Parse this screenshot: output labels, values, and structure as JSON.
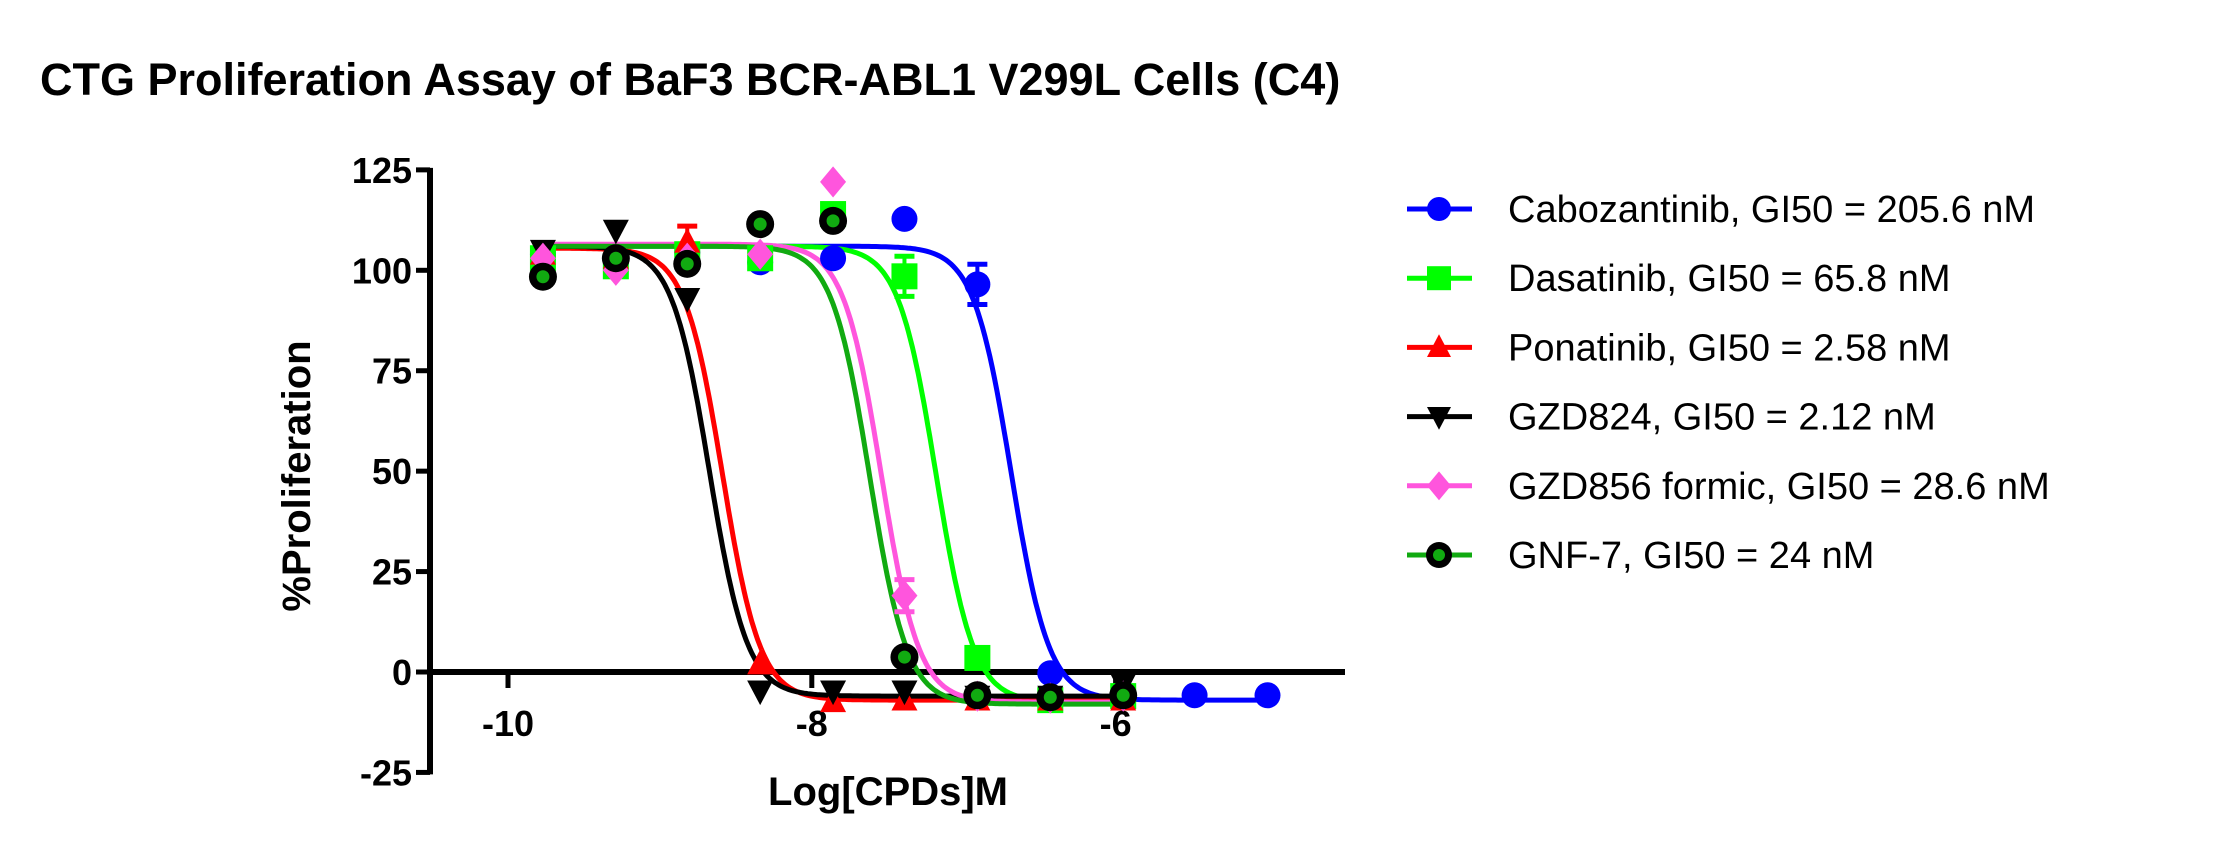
{
  "chart_data": {
    "type": "scatter",
    "title": "CTG Proliferation Assay of BaF3 BCR-ABL1 V299L Cells (C4)",
    "xlabel": "Log[CPDs]M",
    "ylabel": "%Proliferation",
    "xlim": [
      -10.5,
      -4.5
    ],
    "ylim": [
      -25,
      125
    ],
    "xticks": [
      "-10",
      "-8",
      "-6"
    ],
    "xtick_values": [
      -10,
      -8,
      -6
    ],
    "yticks": [
      "125",
      "100",
      "75",
      "50",
      "25",
      "0",
      "-25"
    ],
    "ytick_values": [
      125,
      100,
      75,
      50,
      25,
      0,
      -25
    ],
    "grid": false,
    "legend_position": "right",
    "fit": "four-parameter logistic dose-response",
    "series": [
      {
        "name": "Cabozantinib, GI50 = 205.6 nM",
        "color": "#0000FF",
        "marker": "circle",
        "log_gi50": -6.687,
        "top": 106,
        "bottom": -7,
        "hill": 3.5,
        "x": [
          -9.77,
          -9.29,
          -8.82,
          -8.34,
          -7.86,
          -7.39,
          -6.91,
          -6.43,
          -5.95,
          -5.48,
          -5.0
        ],
        "y": [
          104,
          103,
          104.5,
          102,
          103,
          112.8,
          96.5,
          -0.3,
          -5.8,
          -5.8,
          -5.8
        ],
        "err": [
          0,
          0,
          0,
          0,
          0,
          0,
          5,
          0,
          0,
          0,
          0
        ]
      },
      {
        "name": "Dasatinib, GI50 = 65.8 nM",
        "color": "#00FF00",
        "marker": "square",
        "log_gi50": -7.182,
        "top": 106,
        "bottom": -7.5,
        "hill": 3.5,
        "x": [
          -9.77,
          -9.29,
          -8.82,
          -8.34,
          -7.86,
          -7.39,
          -6.91,
          -6.43,
          -5.95
        ],
        "y": [
          103,
          101,
          104,
          103,
          114,
          98.5,
          3.5,
          -7,
          -6
        ],
        "err": [
          0,
          0,
          0,
          0,
          0,
          5,
          0,
          0,
          0
        ]
      },
      {
        "name": "Ponatinib, GI50 = 2.58 nM",
        "color": "#FF0000",
        "marker": "triangle-up",
        "log_gi50": -8.588,
        "top": 105.5,
        "bottom": -7,
        "hill": 3.5,
        "x": [
          -9.77,
          -9.29,
          -8.82,
          -8.34,
          -7.86,
          -7.39,
          -6.91,
          -6.43,
          -5.95
        ],
        "y": [
          104,
          103,
          107,
          2,
          -7.4,
          -7,
          -7,
          -7,
          -7
        ],
        "err": [
          0,
          0,
          4,
          0,
          0,
          0,
          0,
          0,
          0
        ]
      },
      {
        "name": "GZD824, GI50 = 2.12 nM",
        "color": "#000000",
        "marker": "triangle-down",
        "log_gi50": -8.674,
        "top": 106,
        "bottom": -6,
        "hill": 3.5,
        "x": [
          -9.77,
          -9.29,
          -8.82,
          -8.34,
          -7.86,
          -7.39,
          -6.91,
          -6.43,
          -5.95
        ],
        "y": [
          105,
          110,
          93,
          -4.7,
          -4.7,
          -4.7,
          -6,
          -6,
          -3
        ],
        "err": [
          0,
          0,
          0,
          0,
          0,
          0,
          0,
          0,
          0
        ]
      },
      {
        "name": "GZD856 formic, GI50 = 28.6 nM",
        "color": "#FF55DD",
        "marker": "diamond",
        "log_gi50": -7.544,
        "top": 106.5,
        "bottom": -7.5,
        "hill": 3.5,
        "x": [
          -9.77,
          -9.29,
          -8.82,
          -8.34,
          -7.86,
          -7.39,
          -6.91,
          -6.43,
          -5.95
        ],
        "y": [
          103,
          100,
          103,
          104,
          122,
          19,
          -6,
          -6.5,
          -6
        ],
        "err": [
          0,
          0,
          0,
          0,
          0,
          4,
          0,
          0,
          0
        ]
      },
      {
        "name": "GNF-7, GI50 = 24 nM",
        "color": "#11AA11",
        "marker": "ring-circle",
        "log_gi50": -7.62,
        "top": 106,
        "bottom": -8,
        "hill": 3.5,
        "x": [
          -9.77,
          -9.29,
          -8.82,
          -8.34,
          -7.86,
          -7.39,
          -6.91,
          -6.43,
          -5.95
        ],
        "y": [
          98.4,
          103,
          101.6,
          111.5,
          112.3,
          3.7,
          -5.8,
          -6.3,
          -5.8
        ],
        "err": [
          0,
          0,
          0,
          0,
          0,
          0,
          0,
          0,
          0
        ]
      }
    ]
  }
}
